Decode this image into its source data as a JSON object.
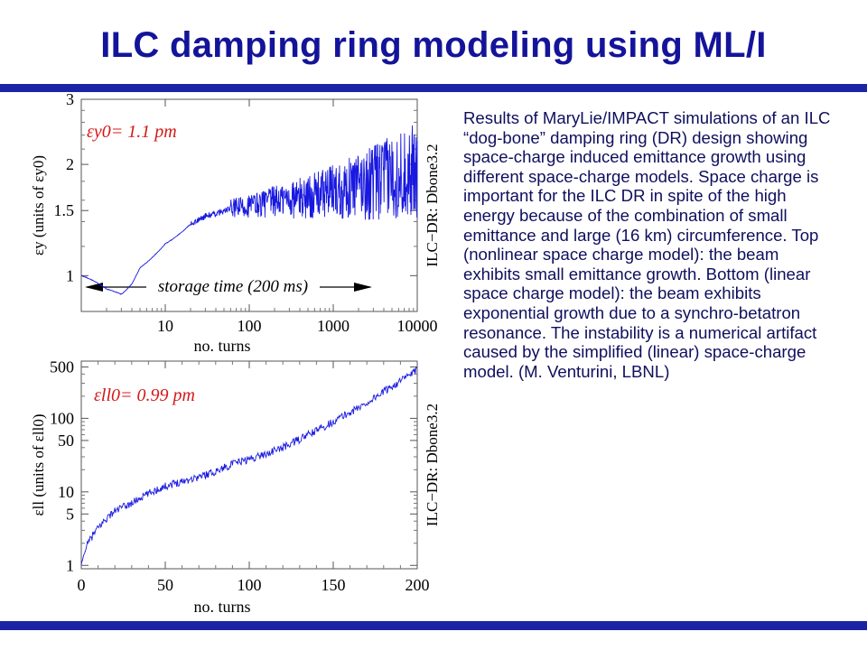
{
  "title": "ILC damping ring modeling using ML/I",
  "description": "Results of MaryLie/IMPACT simulations of an ILC “dog-bone” damping ring (DR) design showing space-charge induced emittance growth using different space-charge models. Space charge is important for the ILC DR in spite of the high energy because of the combination of small emittance and large (16 km) circumference. Top (nonlinear space charge model): the beam exhibits small emittance growth. Bottom (linear space charge model):  the beam exhibits exponential growth due to a synchro-betatron resonance. The instability is a numerical artifact caused by the simplified (linear) space-charge model. (M. Venturini, LBNL)",
  "colors": {
    "title": "#14149a",
    "bar": "#1c24a6",
    "series": "#1818e0",
    "annotation": "#d41818",
    "text": "#0f0f5e"
  },
  "chart_data": [
    {
      "type": "line",
      "x_scale": "log",
      "y_scale": "log",
      "xlim": [
        1,
        10000
      ],
      "ylim": [
        0.8,
        3
      ],
      "xlabel": "no. turns",
      "ylabel": "εy (units of εy0)",
      "x_ticks": [
        "10",
        "100",
        "1000",
        "10000"
      ],
      "y_ticks": [
        "1",
        "1.5",
        "2",
        "3"
      ],
      "annotation": "εy0= 1.1 pm",
      "arrow_label": "storage time (200 ms)",
      "side_label": "ILC−DR: Dbone3.2",
      "series": [
        {
          "points": [
            [
              1,
              1.0
            ],
            [
              2,
              0.92
            ],
            [
              3,
              0.89
            ],
            [
              4,
              0.95
            ],
            [
              5,
              1.05
            ],
            [
              7,
              1.12
            ],
            [
              10,
              1.22
            ],
            [
              15,
              1.3
            ],
            [
              20,
              1.38
            ],
            [
              30,
              1.45
            ],
            [
              40,
              1.47
            ],
            [
              60,
              1.52
            ],
            [
              100,
              1.55
            ],
            [
              200,
              1.6
            ],
            [
              400,
              1.63
            ],
            [
              700,
              1.68
            ],
            [
              1000,
              1.72
            ],
            [
              2000,
              1.78
            ],
            [
              4000,
              1.88
            ],
            [
              7000,
              1.95
            ],
            [
              10000,
              2.0
            ]
          ],
          "band": [
            [
              60,
              0.06
            ],
            [
              150,
              0.09
            ],
            [
              400,
              0.13
            ],
            [
              1000,
              0.17
            ],
            [
              3000,
              0.24
            ],
            [
              10000,
              0.3
            ]
          ]
        }
      ]
    },
    {
      "type": "line",
      "y_scale": "log",
      "xlim": [
        0,
        200
      ],
      "ylim": [
        0.9,
        600
      ],
      "xlabel": "no. turns",
      "ylabel": "εll (units of εll0)",
      "x_ticks": [
        "0",
        "50",
        "100",
        "150",
        "200"
      ],
      "y_ticks": [
        "1",
        "5",
        "10",
        "50",
        "100",
        "500"
      ],
      "annotation": "εll0= 0.99 pm",
      "side_label": "ILC−DR: Dbone3.2",
      "series": [
        {
          "points": [
            [
              0,
              1.0
            ],
            [
              2,
              1.5
            ],
            [
              5,
              2.2
            ],
            [
              10,
              3.2
            ],
            [
              20,
              5.5
            ],
            [
              30,
              7.0
            ],
            [
              40,
              9.5
            ],
            [
              50,
              12
            ],
            [
              60,
              14
            ],
            [
              70,
              16
            ],
            [
              80,
              19
            ],
            [
              90,
              24
            ],
            [
              100,
              28
            ],
            [
              110,
              33
            ],
            [
              120,
              40
            ],
            [
              130,
              52
            ],
            [
              140,
              68
            ],
            [
              150,
              90
            ],
            [
              160,
              120
            ],
            [
              170,
              160
            ],
            [
              180,
              230
            ],
            [
              190,
              320
            ],
            [
              200,
              450
            ]
          ],
          "noise": 0.12
        }
      ]
    }
  ]
}
